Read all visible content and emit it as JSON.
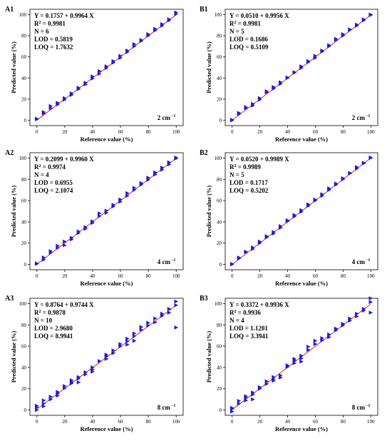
{
  "colors": {
    "marker": "#1a1ae6",
    "marker_edge": "#2020a0",
    "fit_line": "#e8221b",
    "axis": "#000000"
  },
  "chart_data": [
    {
      "type": "scatter",
      "panel": "A1",
      "xlabel": "Reference value (%)",
      "ylabel": "Predicted value (%)",
      "xlim": [
        -5,
        105
      ],
      "ylim": [
        -5,
        105
      ],
      "xticks": [
        0,
        20,
        40,
        60,
        80,
        100
      ],
      "yticks": [
        0,
        20,
        40,
        60,
        80,
        100
      ],
      "stats": {
        "equation": "Y = 0.1757 + 0.9964 X",
        "r2_value": "= 0.9981",
        "n": "N = 6",
        "lod": "LOD = 0.5819",
        "loq": "LOQ = 1.7632"
      },
      "resolution": {
        "value": "2 cm",
        "sup": "−1"
      },
      "fit": {
        "intercept": 0.1757,
        "slope": 0.9964
      },
      "x": [
        0,
        0,
        5,
        5,
        10,
        10,
        15,
        15,
        20,
        20,
        25,
        25,
        30,
        30,
        35,
        35,
        40,
        40,
        45,
        45,
        50,
        50,
        55,
        55,
        60,
        60,
        65,
        65,
        70,
        70,
        75,
        75,
        80,
        80,
        85,
        85,
        90,
        90,
        95,
        95,
        100,
        100
      ],
      "y": [
        1.5,
        1.0,
        6.5,
        7.8,
        11.5,
        13.5,
        15.0,
        16.5,
        19.5,
        21.0,
        24.0,
        25.5,
        29.5,
        30.8,
        34.0,
        35.5,
        39.5,
        41.5,
        44.0,
        46.5,
        49.5,
        51.0,
        54.5,
        56.0,
        59.0,
        61.0,
        64.5,
        66.0,
        70.0,
        72.0,
        75.0,
        76.0,
        80.0,
        81.5,
        85.0,
        86.5,
        89.5,
        91.0,
        94.5,
        95.5,
        100.5,
        102.0
      ]
    },
    {
      "type": "scatter",
      "panel": "B1",
      "xlabel": "Reference value (%)",
      "ylabel": "Predicted value (%)",
      "xlim": [
        -5,
        105
      ],
      "ylim": [
        -5,
        105
      ],
      "xticks": [
        0,
        20,
        40,
        60,
        80,
        100
      ],
      "yticks": [
        0,
        20,
        40,
        60,
        80,
        100
      ],
      "stats": {
        "equation": "Y = 0.0510 + 0.9956 X",
        "r2_value": "= 0.9981",
        "n": "N = 5",
        "lod": "LOD = 0.1686",
        "loq": "LOQ = 0.5109"
      },
      "resolution": {
        "value": "2 cm",
        "sup": "−1"
      },
      "fit": {
        "intercept": 0.051,
        "slope": 0.9956
      },
      "x": [
        0,
        0,
        5,
        5,
        10,
        10,
        15,
        15,
        20,
        20,
        25,
        25,
        30,
        30,
        35,
        35,
        40,
        40,
        45,
        45,
        50,
        50,
        55,
        55,
        60,
        60,
        65,
        65,
        70,
        70,
        75,
        75,
        80,
        80,
        85,
        85,
        90,
        90,
        95,
        95,
        100,
        100
      ],
      "y": [
        0.5,
        0.0,
        6.0,
        7.0,
        11.5,
        12.5,
        14.0,
        15.5,
        19.5,
        21.0,
        26.5,
        27.5,
        30.0,
        31.5,
        34.5,
        36.0,
        40.0,
        40.5,
        45.0,
        45.5,
        49.5,
        51.0,
        55.0,
        56.0,
        59.0,
        61.0,
        65.0,
        66.0,
        70.0,
        71.0,
        76.0,
        77.0,
        80.0,
        81.5,
        85.5,
        86.0,
        89.5,
        90.5,
        94.5,
        95.5,
        99.5,
        100.0
      ]
    },
    {
      "type": "scatter",
      "panel": "A2",
      "xlabel": "Reference value (%)",
      "ylabel": "Predicted value (%)",
      "xlim": [
        -5,
        105
      ],
      "ylim": [
        -5,
        105
      ],
      "xticks": [
        0,
        20,
        40,
        60,
        80,
        100
      ],
      "yticks": [
        0,
        20,
        40,
        60,
        80,
        100
      ],
      "stats": {
        "equation": "Y = 0.2099 + 0.9960 X",
        "r2_value": "= 0.9974",
        "n": "N = 4",
        "lod": "LOD = 0.6955",
        "loq": "LOQ = 2.1074"
      },
      "resolution": {
        "value": "4 cm",
        "sup": "−1"
      },
      "fit": {
        "intercept": 0.2099,
        "slope": 0.996
      },
      "x": [
        0,
        0,
        5,
        5,
        10,
        10,
        15,
        15,
        20,
        20,
        25,
        25,
        30,
        30,
        35,
        35,
        40,
        40,
        45,
        45,
        50,
        50,
        55,
        55,
        60,
        60,
        65,
        65,
        70,
        70,
        75,
        75,
        80,
        80,
        85,
        85,
        90,
        90,
        95,
        95,
        100,
        100
      ],
      "y": [
        0.5,
        1.0,
        4.5,
        6.5,
        11.0,
        12.5,
        15.5,
        17.5,
        18.0,
        21.5,
        23.5,
        25.0,
        29.5,
        31.0,
        33.5,
        35.0,
        39.0,
        40.5,
        45.5,
        48.0,
        48.5,
        50.5,
        54.5,
        56.0,
        59.0,
        61.0,
        64.5,
        67.0,
        70.0,
        72.0,
        75.0,
        76.5,
        79.5,
        81.5,
        84.5,
        86.5,
        89.0,
        91.0,
        94.0,
        96.0,
        99.5,
        100.5
      ]
    },
    {
      "type": "scatter",
      "panel": "B2",
      "xlabel": "Reference value (%)",
      "ylabel": "Predicted value (%)",
      "xlim": [
        -5,
        105
      ],
      "ylim": [
        -5,
        105
      ],
      "xticks": [
        0,
        20,
        40,
        60,
        80,
        100
      ],
      "yticks": [
        0,
        20,
        40,
        60,
        80,
        100
      ],
      "stats": {
        "equation": "Y = 0.0520 + 0.9989 X",
        "r2_value": "= 0.9989",
        "n": "N = 5",
        "lod": "LOD = 0.1717",
        "loq": "LOQ = 0.5202"
      },
      "resolution": {
        "value": "4 cm",
        "sup": "−1"
      },
      "fit": {
        "intercept": 0.052,
        "slope": 0.9989
      },
      "x": [
        0,
        0,
        5,
        5,
        10,
        10,
        15,
        15,
        20,
        20,
        25,
        25,
        30,
        30,
        35,
        35,
        40,
        40,
        45,
        45,
        50,
        50,
        55,
        55,
        60,
        60,
        65,
        65,
        70,
        70,
        75,
        75,
        80,
        80,
        85,
        85,
        90,
        90,
        95,
        95,
        100,
        100
      ],
      "y": [
        0.0,
        0.5,
        5.5,
        6.5,
        11.5,
        12.0,
        14.5,
        16.0,
        20.0,
        21.5,
        25.5,
        26.5,
        29.0,
        30.5,
        34.5,
        36.0,
        40.5,
        41.5,
        45.0,
        46.5,
        49.5,
        51.0,
        55.0,
        56.5,
        60.0,
        61.0,
        64.5,
        66.0,
        70.0,
        71.5,
        75.0,
        76.0,
        80.0,
        81.0,
        85.5,
        86.0,
        90.0,
        91.5,
        95.0,
        95.5,
        100.0,
        100.5
      ]
    },
    {
      "type": "scatter",
      "panel": "A3",
      "xlabel": "Reference value (%)",
      "ylabel": "Predicted value (%)",
      "xlim": [
        -5,
        105
      ],
      "ylim": [
        -5,
        105
      ],
      "xticks": [
        0,
        20,
        40,
        60,
        80,
        100
      ],
      "yticks": [
        0,
        20,
        40,
        60,
        80,
        100
      ],
      "stats": {
        "equation": "Y = 0.8764 + 0.9744 X",
        "r2_value": "= 0.9878",
        "n": "N = 10",
        "lod": "LOD = 2.9680",
        "loq": "LOQ = 8.9941"
      },
      "resolution": {
        "value": "8 cm",
        "sup": "−1"
      },
      "fit": {
        "intercept": 0.8764,
        "slope": 0.9744
      },
      "x": [
        0,
        0,
        0,
        5,
        5,
        5,
        10,
        10,
        15,
        15,
        15,
        20,
        20,
        25,
        25,
        25,
        30,
        30,
        30,
        35,
        35,
        40,
        40,
        40,
        45,
        50,
        50,
        50,
        55,
        55,
        60,
        60,
        65,
        65,
        65,
        70,
        70,
        70,
        75,
        75,
        80,
        80,
        85,
        85,
        90,
        90,
        95,
        95,
        100,
        100,
        100
      ],
      "y": [
        0.0,
        2.5,
        4.0,
        3.5,
        6.0,
        9.0,
        10.0,
        12.5,
        13.5,
        15.5,
        17.0,
        20.5,
        22.5,
        25.0,
        26.5,
        28.0,
        26.0,
        29.5,
        31.0,
        33.5,
        35.5,
        36.0,
        38.0,
        40.0,
        46.0,
        48.0,
        50.5,
        52.0,
        53.5,
        56.0,
        60.0,
        62.0,
        61.5,
        64.5,
        67.0,
        65.0,
        69.5,
        72.0,
        75.5,
        78.0,
        79.5,
        82.0,
        82.5,
        86.0,
        88.5,
        90.5,
        91.5,
        95.0,
        77.5,
        98.5,
        102.0
      ]
    },
    {
      "type": "scatter",
      "panel": "B3",
      "xlabel": "Reference value (%)",
      "ylabel": "Predicted value (%)",
      "xlim": [
        -5,
        105
      ],
      "ylim": [
        -5,
        105
      ],
      "xticks": [
        0,
        20,
        40,
        60,
        80,
        100
      ],
      "yticks": [
        0,
        20,
        40,
        60,
        80,
        100
      ],
      "stats": {
        "equation": "Y = 0.3372 + 0.9936 X",
        "r2_value": "= 0.9936",
        "n": "N = 4",
        "lod": "LOD = 1.1201",
        "loq": "LOQ = 3.3941"
      },
      "resolution": {
        "value": "8 cm",
        "sup": "−1"
      },
      "fit": {
        "intercept": 0.3372,
        "slope": 0.9936
      },
      "x": [
        0,
        0,
        0,
        5,
        5,
        10,
        10,
        10,
        15,
        15,
        15,
        20,
        20,
        25,
        25,
        30,
        30,
        30,
        35,
        35,
        40,
        40,
        45,
        45,
        45,
        50,
        50,
        50,
        55,
        55,
        60,
        60,
        65,
        65,
        70,
        70,
        75,
        75,
        80,
        80,
        85,
        85,
        90,
        90,
        95,
        95,
        100,
        100,
        100
      ],
      "y": [
        -1.5,
        1.0,
        2.0,
        6.0,
        8.5,
        9.0,
        11.5,
        13.0,
        10.0,
        14.5,
        16.5,
        20.0,
        21.5,
        24.5,
        27.0,
        27.5,
        29.0,
        31.0,
        30.5,
        32.5,
        40.5,
        42.0,
        44.0,
        46.5,
        48.0,
        45.5,
        48.5,
        51.0,
        56.5,
        59.5,
        62.0,
        65.0,
        65.5,
        67.5,
        68.5,
        71.0,
        75.0,
        76.5,
        79.5,
        81.0,
        84.0,
        86.0,
        88.0,
        90.5,
        93.5,
        95.0,
        91.5,
        101.5,
        105.0
      ]
    }
  ]
}
